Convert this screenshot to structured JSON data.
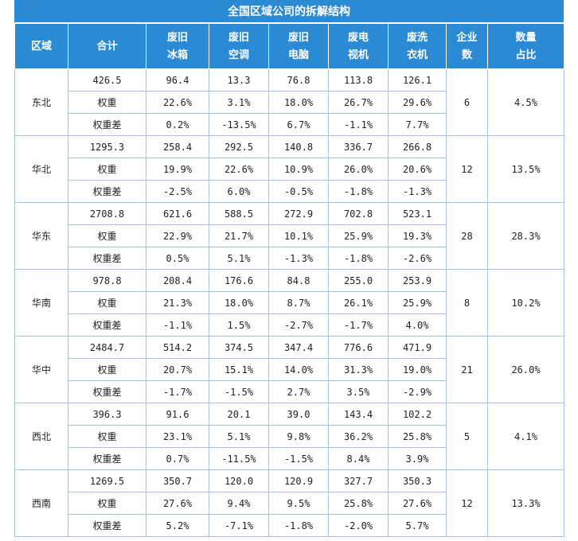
{
  "title": "全国区域公司的拆解结构",
  "headers": [
    [
      "区域"
    ],
    [
      "合计"
    ],
    [
      "废旧",
      "冰箱"
    ],
    [
      "废旧",
      "空调"
    ],
    [
      "废旧",
      "电脑"
    ],
    [
      "废电",
      "视机"
    ],
    [
      "废洗",
      "衣机"
    ],
    [
      "企业",
      "数"
    ],
    [
      "数量",
      "占比"
    ]
  ],
  "regions": [
    {
      "name": "东北",
      "total": "426.5",
      "values": [
        "96.4",
        "13.3",
        "76.8",
        "113.8",
        "126.1"
      ],
      "weight_label": "权重",
      "weights": [
        "22.6%",
        "3.1%",
        "18.0%",
        "26.7%",
        "29.6%"
      ],
      "diff_label": "权重差",
      "diffs": [
        "0.2%",
        "-13.5%",
        "6.7%",
        "-1.1%",
        "7.7%"
      ],
      "firms": "6",
      "share": "4.5%"
    },
    {
      "name": "华北",
      "total": "1295.3",
      "values": [
        "258.4",
        "292.5",
        "140.8",
        "336.7",
        "266.8"
      ],
      "weight_label": "权重",
      "weights": [
        "19.9%",
        "22.6%",
        "10.9%",
        "26.0%",
        "20.6%"
      ],
      "diff_label": "权重差",
      "diffs": [
        "-2.5%",
        "6.0%",
        "-0.5%",
        "-1.8%",
        "-1.3%"
      ],
      "firms": "12",
      "share": "13.5%"
    },
    {
      "name": "华东",
      "total": "2708.8",
      "values": [
        "621.6",
        "588.5",
        "272.9",
        "702.8",
        "523.1"
      ],
      "weight_label": "权重",
      "weights": [
        "22.9%",
        "21.7%",
        "10.1%",
        "25.9%",
        "19.3%"
      ],
      "diff_label": "权重差",
      "diffs": [
        "0.5%",
        "5.1%",
        "-1.3%",
        "-1.8%",
        "-2.6%"
      ],
      "firms": "28",
      "share": "28.3%"
    },
    {
      "name": "华南",
      "total": "978.8",
      "values": [
        "208.4",
        "176.6",
        "84.8",
        "255.0",
        "253.9"
      ],
      "weight_label": "权重",
      "weights": [
        "21.3%",
        "18.0%",
        "8.7%",
        "26.1%",
        "25.9%"
      ],
      "diff_label": "权重差",
      "diffs": [
        "-1.1%",
        "1.5%",
        "-2.7%",
        "-1.7%",
        "4.0%"
      ],
      "firms": "8",
      "share": "10.2%"
    },
    {
      "name": "华中",
      "total": "2484.7",
      "values": [
        "514.2",
        "374.5",
        "347.4",
        "776.6",
        "471.9"
      ],
      "weight_label": "权重",
      "weights": [
        "20.7%",
        "15.1%",
        "14.0%",
        "31.3%",
        "19.0%"
      ],
      "diff_label": "权重差",
      "diffs": [
        "-1.7%",
        "-1.5%",
        "2.7%",
        "3.5%",
        "-2.9%"
      ],
      "firms": "21",
      "share": "26.0%"
    },
    {
      "name": "西北",
      "total": "396.3",
      "values": [
        "91.6",
        "20.1",
        "39.0",
        "143.4",
        "102.2"
      ],
      "weight_label": "权重",
      "weights": [
        "23.1%",
        "5.1%",
        "9.8%",
        "36.2%",
        "25.8%"
      ],
      "diff_label": "权重差",
      "diffs": [
        "0.7%",
        "-11.5%",
        "-1.5%",
        "8.4%",
        "3.9%"
      ],
      "firms": "5",
      "share": "4.1%"
    },
    {
      "name": "西南",
      "total": "1269.5",
      "values": [
        "350.7",
        "120.0",
        "120.9",
        "327.7",
        "350.3"
      ],
      "weight_label": "权重",
      "weights": [
        "27.6%",
        "9.4%",
        "9.5%",
        "25.8%",
        "27.6%"
      ],
      "diff_label": "权重差",
      "diffs": [
        "5.2%",
        "-7.1%",
        "-1.8%",
        "-2.0%",
        "5.7%"
      ],
      "firms": "12",
      "share": "13.3%"
    }
  ]
}
